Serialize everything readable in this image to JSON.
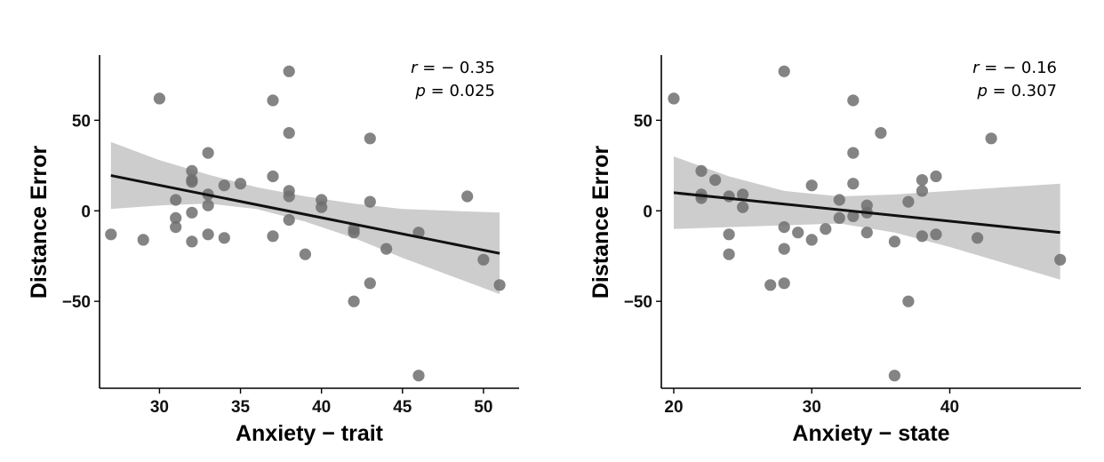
{
  "colors": {
    "point": "#6e6e6e",
    "ci_band": "#c8c8c8",
    "fit_line": "#111111",
    "axis": "#000000"
  },
  "chart_data": [
    {
      "type": "scatter",
      "xlabel": "Anxiety − trait",
      "ylabel": "Distance Error",
      "xlim": [
        26.3,
        52.2
      ],
      "ylim": [
        -98,
        86
      ],
      "xticks": [
        30,
        35,
        40,
        45,
        50
      ],
      "yticks": [
        -50,
        0,
        50
      ],
      "xtick_labels": [
        "30",
        "35",
        "40",
        "45",
        "50"
      ],
      "ytick_labels": [
        "−50",
        "0",
        "50"
      ],
      "grid": false,
      "stats": {
        "r_symbol": "r",
        "r_text": " = − 0.35",
        "p_symbol": "p",
        "p_text": " = 0.025"
      },
      "fit": {
        "x": [
          27,
          51
        ],
        "y": [
          19.5,
          -23.5
        ]
      },
      "ci_band": {
        "x": [
          27,
          30,
          33,
          36,
          39,
          42,
          45,
          48,
          51
        ],
        "upper": [
          38,
          28,
          20,
          13,
          8,
          4,
          1,
          0,
          -1
        ],
        "lower": [
          1,
          3,
          4,
          1,
          -6,
          -15,
          -26,
          -36,
          -46
        ]
      },
      "points": [
        {
          "x": 27,
          "y": -13
        },
        {
          "x": 29,
          "y": -16
        },
        {
          "x": 30,
          "y": 62
        },
        {
          "x": 31,
          "y": 6
        },
        {
          "x": 31,
          "y": -4
        },
        {
          "x": 31,
          "y": -9
        },
        {
          "x": 32,
          "y": 22
        },
        {
          "x": 32,
          "y": 17
        },
        {
          "x": 32,
          "y": 16
        },
        {
          "x": 32,
          "y": -1
        },
        {
          "x": 32,
          "y": -17
        },
        {
          "x": 33,
          "y": 32
        },
        {
          "x": 33,
          "y": 9
        },
        {
          "x": 33,
          "y": 3
        },
        {
          "x": 33,
          "y": -13
        },
        {
          "x": 34,
          "y": 14
        },
        {
          "x": 34,
          "y": -15
        },
        {
          "x": 35,
          "y": 15
        },
        {
          "x": 37,
          "y": 61
        },
        {
          "x": 37,
          "y": 19
        },
        {
          "x": 37,
          "y": -14
        },
        {
          "x": 38,
          "y": 77
        },
        {
          "x": 38,
          "y": 43
        },
        {
          "x": 38,
          "y": 11
        },
        {
          "x": 38,
          "y": 8
        },
        {
          "x": 38,
          "y": -5
        },
        {
          "x": 39,
          "y": -24
        },
        {
          "x": 40,
          "y": 6
        },
        {
          "x": 40,
          "y": 2
        },
        {
          "x": 42,
          "y": -10
        },
        {
          "x": 42,
          "y": -12
        },
        {
          "x": 42,
          "y": -50
        },
        {
          "x": 43,
          "y": 40
        },
        {
          "x": 43,
          "y": 5
        },
        {
          "x": 43,
          "y": -40
        },
        {
          "x": 44,
          "y": -21
        },
        {
          "x": 46,
          "y": -12
        },
        {
          "x": 46,
          "y": -91
        },
        {
          "x": 49,
          "y": 8
        },
        {
          "x": 50,
          "y": -27
        },
        {
          "x": 51,
          "y": -41
        }
      ]
    },
    {
      "type": "scatter",
      "xlabel": "Anxiety − state",
      "ylabel": "Distance Error",
      "xlim": [
        19.1,
        49.5
      ],
      "ylim": [
        -98,
        86
      ],
      "xticks": [
        20,
        30,
        40
      ],
      "yticks": [
        -50,
        0,
        50
      ],
      "xtick_labels": [
        "20",
        "30",
        "40"
      ],
      "ytick_labels": [
        "−50",
        "0",
        "50"
      ],
      "grid": false,
      "stats": {
        "r_symbol": "r",
        "r_text": " = − 0.16",
        "p_symbol": "p",
        "p_text": " = 0.307"
      },
      "fit": {
        "x": [
          20,
          48
        ],
        "y": [
          10,
          -12
        ]
      },
      "ci_band": {
        "x": [
          20,
          24,
          28,
          32,
          36,
          40,
          44,
          48
        ],
        "upper": [
          30,
          19,
          11,
          8,
          9,
          11,
          13,
          15
        ],
        "lower": [
          -10,
          -9,
          -8,
          -7,
          -12,
          -20,
          -29,
          -38
        ]
      },
      "points": [
        {
          "x": 20,
          "y": 62
        },
        {
          "x": 22,
          "y": 22
        },
        {
          "x": 22,
          "y": 9
        },
        {
          "x": 22,
          "y": 7
        },
        {
          "x": 23,
          "y": 17
        },
        {
          "x": 24,
          "y": 8
        },
        {
          "x": 24,
          "y": -13
        },
        {
          "x": 24,
          "y": -24
        },
        {
          "x": 25,
          "y": 9
        },
        {
          "x": 25,
          "y": 2
        },
        {
          "x": 27,
          "y": -41
        },
        {
          "x": 28,
          "y": 77
        },
        {
          "x": 28,
          "y": -9
        },
        {
          "x": 28,
          "y": -21
        },
        {
          "x": 28,
          "y": -40
        },
        {
          "x": 29,
          "y": -12
        },
        {
          "x": 30,
          "y": 14
        },
        {
          "x": 30,
          "y": -16
        },
        {
          "x": 31,
          "y": -10
        },
        {
          "x": 32,
          "y": 6
        },
        {
          "x": 32,
          "y": -4
        },
        {
          "x": 33,
          "y": 61
        },
        {
          "x": 33,
          "y": 32
        },
        {
          "x": 33,
          "y": 15
        },
        {
          "x": 33,
          "y": -3
        },
        {
          "x": 34,
          "y": 3
        },
        {
          "x": 34,
          "y": -1
        },
        {
          "x": 34,
          "y": -12
        },
        {
          "x": 35,
          "y": 43
        },
        {
          "x": 36,
          "y": -17
        },
        {
          "x": 36,
          "y": -91
        },
        {
          "x": 37,
          "y": 5
        },
        {
          "x": 37,
          "y": -50
        },
        {
          "x": 38,
          "y": 17
        },
        {
          "x": 38,
          "y": 11
        },
        {
          "x": 38,
          "y": -14
        },
        {
          "x": 39,
          "y": 19
        },
        {
          "x": 39,
          "y": -13
        },
        {
          "x": 42,
          "y": -15
        },
        {
          "x": 43,
          "y": 40
        },
        {
          "x": 48,
          "y": -27
        }
      ]
    }
  ]
}
